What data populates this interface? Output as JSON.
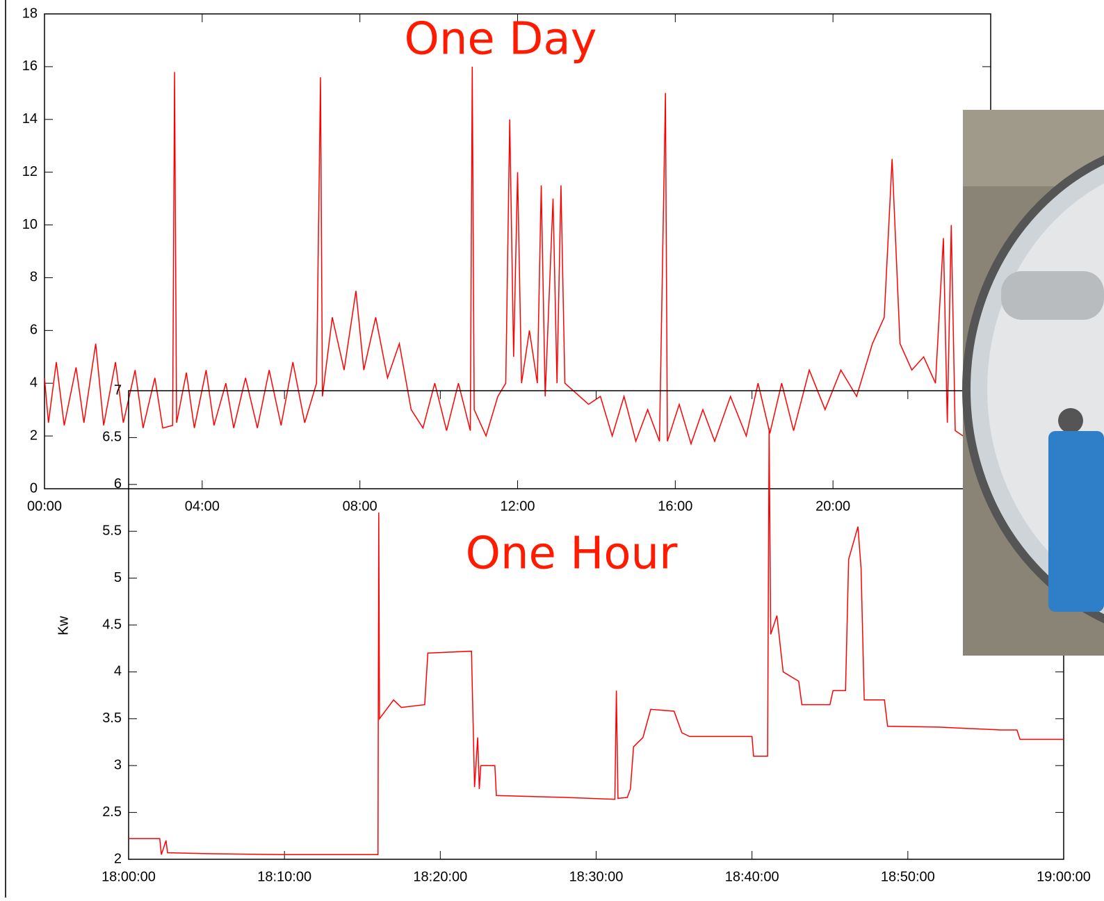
{
  "chart_data": [
    {
      "type": "line",
      "title": "One Day",
      "x": [
        0,
        0.1,
        0.3,
        0.5,
        0.8,
        1.0,
        1.3,
        1.5,
        1.8,
        2.0,
        2.3,
        2.5,
        2.8,
        3.0,
        3.25,
        3.3,
        3.35,
        3.6,
        3.8,
        4.1,
        4.3,
        4.6,
        4.8,
        5.1,
        5.4,
        5.7,
        6.0,
        6.3,
        6.6,
        6.9,
        7.0,
        7.05,
        7.3,
        7.6,
        7.9,
        8.1,
        8.4,
        8.7,
        9.0,
        9.3,
        9.6,
        9.9,
        10.2,
        10.5,
        10.8,
        10.85,
        10.9,
        11.2,
        11.5,
        11.7,
        11.8,
        11.9,
        12.0,
        12.1,
        12.3,
        12.5,
        12.6,
        12.7,
        12.9,
        13.0,
        13.1,
        13.2,
        13.5,
        13.8,
        14.1,
        14.4,
        14.7,
        15.0,
        15.3,
        15.6,
        15.75,
        15.8,
        16.1,
        16.4,
        16.7,
        17.0,
        17.4,
        17.8,
        18.1,
        18.4,
        18.7,
        19.0,
        19.4,
        19.8,
        20.2,
        20.6,
        21.0,
        21.3,
        21.5,
        21.7,
        22.0,
        22.3,
        22.6,
        22.8,
        22.9,
        23.0,
        23.1,
        23.3,
        23.5
      ],
      "series": [
        {
          "color": "#ff0000",
          "values": [
            4.2,
            2.5,
            4.8,
            2.4,
            4.6,
            2.5,
            5.5,
            2.4,
            4.8,
            2.5,
            4.5,
            2.3,
            4.2,
            2.3,
            2.4,
            15.8,
            2.5,
            4.4,
            2.3,
            4.5,
            2.4,
            4.0,
            2.3,
            4.2,
            2.3,
            4.5,
            2.4,
            4.8,
            2.5,
            4.0,
            15.6,
            3.5,
            6.5,
            4.5,
            7.5,
            4.5,
            6.5,
            4.2,
            5.5,
            3.0,
            2.3,
            4.0,
            2.2,
            4.0,
            2.2,
            16.0,
            3.0,
            2.0,
            3.5,
            4.0,
            14.0,
            5.0,
            12.0,
            4.0,
            6.0,
            4.0,
            11.5,
            3.5,
            11.0,
            4.0,
            11.5,
            4.0,
            3.6,
            3.2,
            3.5,
            2.0,
            3.5,
            1.8,
            3.0,
            1.8,
            15.0,
            1.8,
            3.2,
            1.7,
            3.0,
            1.8,
            3.5,
            2.0,
            4.0,
            2.1,
            4.0,
            2.2,
            4.5,
            3.0,
            4.5,
            3.5,
            5.5,
            6.5,
            12.5,
            5.5,
            4.5,
            5.0,
            4.0,
            9.5,
            2.5,
            10.0,
            2.2,
            2.0,
            2.2
          ]
        }
      ],
      "xlim": [
        0,
        24
      ],
      "ylim": [
        0,
        18
      ],
      "xticks": [
        {
          "value": 0,
          "label": "00:00"
        },
        {
          "value": 4,
          "label": "04:00"
        },
        {
          "value": 8,
          "label": "08:00"
        },
        {
          "value": 12,
          "label": "12:00"
        },
        {
          "value": 16,
          "label": "16:00"
        },
        {
          "value": 20,
          "label": "20:00"
        }
      ],
      "yticks": [
        0,
        2,
        4,
        6,
        8,
        10,
        12,
        14,
        16,
        18
      ]
    },
    {
      "type": "line",
      "title": "One Hour",
      "y_label": "Kw",
      "x": [
        0,
        2,
        2.1,
        2.4,
        2.5,
        5,
        10,
        16,
        16.05,
        16.1,
        17,
        17.5,
        19,
        19.2,
        22,
        22.2,
        22.4,
        22.5,
        22.6,
        23.5,
        23.6,
        28,
        31.2,
        31.3,
        31.4,
        32,
        32.2,
        32.4,
        33,
        33.5,
        35,
        35.5,
        36,
        40,
        40.1,
        41,
        41.1,
        41.2,
        41.6,
        42,
        43,
        43.2,
        45,
        45.2,
        46,
        46.2,
        46.8,
        47,
        47.2,
        48.5,
        48.7,
        52,
        56,
        57,
        57.2,
        60
      ],
      "series": [
        {
          "color": "#ff0000",
          "values": [
            2.22,
            2.22,
            2.05,
            2.2,
            2.07,
            2.06,
            2.05,
            2.05,
            5.7,
            3.5,
            3.7,
            3.62,
            3.65,
            4.2,
            4.22,
            2.77,
            3.3,
            2.75,
            3.0,
            3.0,
            2.68,
            2.66,
            2.64,
            3.8,
            2.65,
            2.66,
            2.75,
            3.2,
            3.3,
            3.6,
            3.58,
            3.35,
            3.31,
            3.31,
            3.1,
            3.1,
            6.6,
            4.4,
            4.6,
            4.0,
            3.9,
            3.65,
            3.65,
            3.8,
            3.8,
            5.2,
            5.55,
            5.1,
            3.7,
            3.7,
            3.42,
            3.41,
            3.38,
            3.38,
            3.28,
            3.28
          ]
        }
      ],
      "xlim": [
        0,
        60
      ],
      "ylim": [
        2,
        7
      ],
      "xticks": [
        {
          "value": 0,
          "label": "18:00:00"
        },
        {
          "value": 10,
          "label": "18:10:00"
        },
        {
          "value": 20,
          "label": "18:20:00"
        },
        {
          "value": 30,
          "label": "18:30:00"
        },
        {
          "value": 40,
          "label": "18:40:00"
        },
        {
          "value": 50,
          "label": "18:50:00"
        },
        {
          "value": 60,
          "label": "19:00:00"
        }
      ],
      "yticks": [
        2,
        2.5,
        3,
        3.5,
        4,
        4.5,
        5,
        5.5,
        6,
        6.5,
        7
      ]
    }
  ]
}
